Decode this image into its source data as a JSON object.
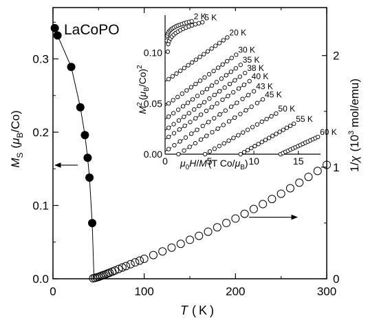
{
  "chart_data": [
    {
      "type": "scatter",
      "title": "LaCoPO",
      "xlabel": "T (K)",
      "ylabel_left": "M_S (μB/Co)",
      "ylabel_right": "1/χ (10³ mol/emu)",
      "xlim": [
        0,
        300
      ],
      "ylim_left": [
        0,
        0.37
      ],
      "ylim_right": [
        0,
        2.43
      ],
      "x_ticks": [
        "0",
        "100",
        "200",
        "300"
      ],
      "y_ticks_left": [
        "0.0",
        "0.1",
        "0.2",
        "0.3"
      ],
      "y_ticks_right": [
        "0",
        "1",
        "2"
      ],
      "grid": false,
      "series": [
        {
          "axis": "left",
          "marker": "filled-circle",
          "connected": true,
          "x": [
            2,
            5,
            20,
            30,
            35,
            38,
            40,
            43
          ],
          "y": [
            0.342,
            0.332,
            0.289,
            0.234,
            0.196,
            0.165,
            0.138,
            0.076
          ]
        },
        {
          "axis": "right",
          "marker": "open-circle",
          "connected": false,
          "x": [
            44,
            46,
            48,
            50,
            52,
            54,
            56,
            58,
            60,
            62,
            65,
            68,
            72,
            76,
            80,
            85,
            90,
            95,
            100,
            110,
            120,
            130,
            140,
            150,
            160,
            170,
            180,
            190,
            200,
            210,
            220,
            230,
            240,
            250,
            260,
            270,
            280,
            290,
            300
          ],
          "y": [
            0.004,
            0.008,
            0.012,
            0.017,
            0.023,
            0.029,
            0.035,
            0.041,
            0.048,
            0.054,
            0.064,
            0.074,
            0.088,
            0.101,
            0.114,
            0.13,
            0.147,
            0.163,
            0.179,
            0.212,
            0.245,
            0.279,
            0.313,
            0.349,
            0.385,
            0.422,
            0.461,
            0.5,
            0.54,
            0.582,
            0.625,
            0.669,
            0.715,
            0.762,
            0.811,
            0.861,
            0.913,
            0.966,
            1.021
          ]
        }
      ],
      "arrows": [
        {
          "direction": "left",
          "points_to": "left axis",
          "near_y": 0.155
        },
        {
          "direction": "right",
          "points_to": "right axis",
          "near_y": 0.084
        }
      ]
    },
    {
      "type": "scatter",
      "inset": true,
      "xlabel": "μ0H/M (T Co/μB)",
      "ylabel": "M² (μB/Co)²",
      "xlim": [
        0,
        17.5
      ],
      "ylim": [
        0,
        0.137
      ],
      "x_ticks": [
        "0",
        "5",
        "10",
        "15"
      ],
      "y_ticks": [
        "0.00",
        "0.05",
        "0.10"
      ],
      "series": [
        {
          "name": "2 K",
          "x_range": [
            0.2,
            3.0
          ],
          "y_range": [
            0.112,
            0.131
          ],
          "fit": false
        },
        {
          "name": "5 K",
          "x_range": [
            0.3,
            4.2
          ],
          "y_range": [
            0.101,
            0.13
          ],
          "fit": false
        },
        {
          "name": "20 K",
          "x_range": [
            0.4,
            7.0
          ],
          "y_range": [
            0.074,
            0.115
          ],
          "fit": true
        },
        {
          "name": "30 K",
          "x_range": [
            0.4,
            8.0
          ],
          "y_range": [
            0.05,
            0.098
          ],
          "fit": true
        },
        {
          "name": "35 K",
          "x_range": [
            0.4,
            8.5
          ],
          "y_range": [
            0.037,
            0.088
          ],
          "fit": true
        },
        {
          "name": "38 K",
          "x_range": [
            0.4,
            9.0
          ],
          "y_range": [
            0.026,
            0.08
          ],
          "fit": true
        },
        {
          "name": "40 K",
          "x_range": [
            0.4,
            9.5
          ],
          "y_range": [
            0.017,
            0.072
          ],
          "fit": true
        },
        {
          "name": "43 K",
          "x_range": [
            0.4,
            10.0
          ],
          "y_range": [
            0.005,
            0.062
          ],
          "fit": true
        },
        {
          "name": "45 K",
          "x_range": [
            1.5,
            11.0
          ],
          "y_range": [
            0.0,
            0.054
          ],
          "fit": true
        },
        {
          "name": "50 K",
          "x_range": [
            4.5,
            12.5
          ],
          "y_range": [
            0.0,
            0.04
          ],
          "fit": true
        },
        {
          "name": "55 K",
          "x_range": [
            8.5,
            14.5
          ],
          "y_range": [
            0.0,
            0.03
          ],
          "fit": true
        },
        {
          "name": "60 K",
          "x_range": [
            13.0,
            17.2
          ],
          "y_range": [
            0.0,
            0.017
          ],
          "fit": true
        }
      ]
    }
  ]
}
